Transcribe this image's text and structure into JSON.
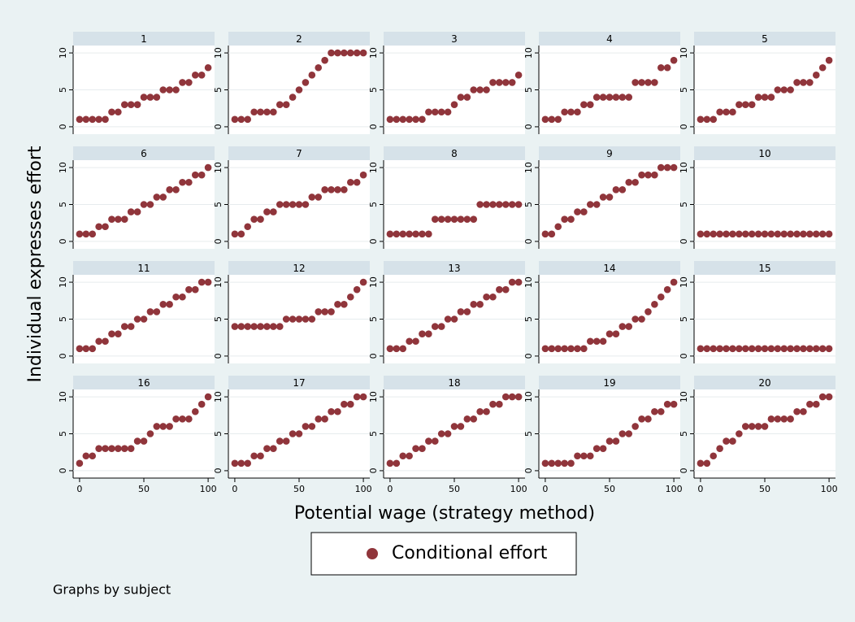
{
  "chart_data": {
    "type": "scatter",
    "y_label": "Individual expresses effort",
    "x_label": "Potential wage (strategy method)",
    "note": "Graphs by subject",
    "legend": {
      "name": "Conditional effort",
      "color": "#90353b"
    },
    "grid": true,
    "x": [
      0,
      5,
      10,
      15,
      20,
      25,
      30,
      35,
      40,
      45,
      50,
      55,
      60,
      65,
      70,
      75,
      80,
      85,
      90,
      95,
      100
    ],
    "xlim": [
      -5,
      105
    ],
    "xticks": [
      0,
      50,
      100
    ],
    "ylim": [
      -1,
      11
    ],
    "yticks": [
      0,
      5,
      10
    ],
    "panels": [
      {
        "title": "1",
        "values": [
          1,
          1,
          1,
          1,
          1,
          2,
          2,
          3,
          3,
          3,
          4,
          4,
          4,
          5,
          5,
          5,
          6,
          6,
          7,
          7,
          8
        ]
      },
      {
        "title": "2",
        "values": [
          1,
          1,
          1,
          2,
          2,
          2,
          2,
          3,
          3,
          4,
          5,
          6,
          7,
          8,
          9,
          10,
          10,
          10,
          10,
          10,
          10
        ]
      },
      {
        "title": "3",
        "values": [
          1,
          1,
          1,
          1,
          1,
          1,
          2,
          2,
          2,
          2,
          3,
          4,
          4,
          5,
          5,
          5,
          6,
          6,
          6,
          6,
          7
        ]
      },
      {
        "title": "4",
        "values": [
          1,
          1,
          1,
          2,
          2,
          2,
          3,
          3,
          4,
          4,
          4,
          4,
          4,
          4,
          6,
          6,
          6,
          6,
          8,
          8,
          9
        ]
      },
      {
        "title": "5",
        "values": [
          1,
          1,
          1,
          2,
          2,
          2,
          3,
          3,
          3,
          4,
          4,
          4,
          5,
          5,
          5,
          6,
          6,
          6,
          7,
          8,
          9
        ]
      },
      {
        "title": "6",
        "values": [
          1,
          1,
          1,
          2,
          2,
          3,
          3,
          3,
          4,
          4,
          5,
          5,
          6,
          6,
          7,
          7,
          8,
          8,
          9,
          9,
          10
        ]
      },
      {
        "title": "7",
        "values": [
          1,
          1,
          2,
          3,
          3,
          4,
          4,
          5,
          5,
          5,
          5,
          5,
          6,
          6,
          7,
          7,
          7,
          7,
          8,
          8,
          9
        ]
      },
      {
        "title": "8",
        "values": [
          1,
          1,
          1,
          1,
          1,
          1,
          1,
          3,
          3,
          3,
          3,
          3,
          3,
          3,
          5,
          5,
          5,
          5,
          5,
          5,
          5
        ]
      },
      {
        "title": "9",
        "values": [
          1,
          1,
          2,
          3,
          3,
          4,
          4,
          5,
          5,
          6,
          6,
          7,
          7,
          8,
          8,
          9,
          9,
          9,
          10,
          10,
          10
        ]
      },
      {
        "title": "10",
        "values": [
          1,
          1,
          1,
          1,
          1,
          1,
          1,
          1,
          1,
          1,
          1,
          1,
          1,
          1,
          1,
          1,
          1,
          1,
          1,
          1,
          1
        ]
      },
      {
        "title": "11",
        "values": [
          1,
          1,
          1,
          2,
          2,
          3,
          3,
          4,
          4,
          5,
          5,
          6,
          6,
          7,
          7,
          8,
          8,
          9,
          9,
          10,
          10
        ]
      },
      {
        "title": "12",
        "values": [
          4,
          4,
          4,
          4,
          4,
          4,
          4,
          4,
          5,
          5,
          5,
          5,
          5,
          6,
          6,
          6,
          7,
          7,
          8,
          9,
          10
        ]
      },
      {
        "title": "13",
        "values": [
          1,
          1,
          1,
          2,
          2,
          3,
          3,
          4,
          4,
          5,
          5,
          6,
          6,
          7,
          7,
          8,
          8,
          9,
          9,
          10,
          10
        ]
      },
      {
        "title": "14",
        "values": [
          1,
          1,
          1,
          1,
          1,
          1,
          1,
          2,
          2,
          2,
          3,
          3,
          4,
          4,
          5,
          5,
          6,
          7,
          8,
          9,
          10
        ]
      },
      {
        "title": "15",
        "values": [
          1,
          1,
          1,
          1,
          1,
          1,
          1,
          1,
          1,
          1,
          1,
          1,
          1,
          1,
          1,
          1,
          1,
          1,
          1,
          1,
          1
        ]
      },
      {
        "title": "16",
        "values": [
          1,
          2,
          2,
          3,
          3,
          3,
          3,
          3,
          3,
          4,
          4,
          5,
          6,
          6,
          6,
          7,
          7,
          7,
          8,
          9,
          10
        ]
      },
      {
        "title": "17",
        "values": [
          1,
          1,
          1,
          2,
          2,
          3,
          3,
          4,
          4,
          5,
          5,
          6,
          6,
          7,
          7,
          8,
          8,
          9,
          9,
          10,
          10
        ]
      },
      {
        "title": "18",
        "values": [
          1,
          1,
          2,
          2,
          3,
          3,
          4,
          4,
          5,
          5,
          6,
          6,
          7,
          7,
          8,
          8,
          9,
          9,
          10,
          10,
          10
        ]
      },
      {
        "title": "19",
        "values": [
          1,
          1,
          1,
          1,
          1,
          2,
          2,
          2,
          3,
          3,
          4,
          4,
          5,
          5,
          6,
          7,
          7,
          8,
          8,
          9,
          9
        ]
      },
      {
        "title": "20",
        "values": [
          1,
          1,
          2,
          3,
          4,
          4,
          5,
          6,
          6,
          6,
          6,
          7,
          7,
          7,
          7,
          8,
          8,
          9,
          9,
          10,
          10
        ]
      }
    ]
  }
}
